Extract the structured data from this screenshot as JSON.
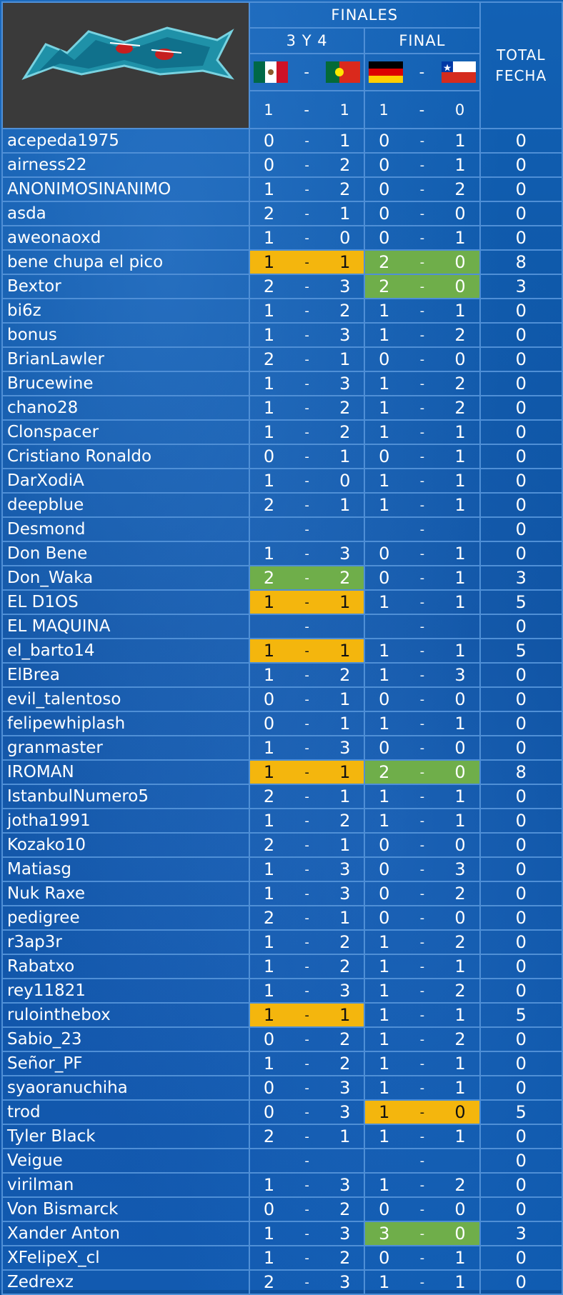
{
  "header": {
    "title": "FINALES",
    "match1": "3 Y 4",
    "match2": "FINAL",
    "total": "TOTAL FECHA",
    "dash": "-",
    "flags": [
      "mexico-flag-icon",
      "portugal-flag-icon",
      "germany-flag-icon",
      "chile-flag-icon"
    ],
    "results": {
      "m1a": "1",
      "m1b": "1",
      "m2a": "1",
      "m2b": "0"
    }
  },
  "colors": {
    "yellow": "#f4b60d",
    "green": "#6fae4a",
    "border": "#4f8fd6"
  },
  "rows": [
    {
      "name": "acepeda1975",
      "m1": [
        "0",
        "1"
      ],
      "m2": [
        "0",
        "1"
      ],
      "total": "0",
      "h1": "",
      "h2": ""
    },
    {
      "name": "airness22",
      "m1": [
        "0",
        "2"
      ],
      "m2": [
        "0",
        "1"
      ],
      "total": "0",
      "h1": "",
      "h2": ""
    },
    {
      "name": "ANONIMOSINANIMO",
      "m1": [
        "1",
        "2"
      ],
      "m2": [
        "0",
        "2"
      ],
      "total": "0",
      "h1": "",
      "h2": ""
    },
    {
      "name": "asda",
      "m1": [
        "2",
        "1"
      ],
      "m2": [
        "0",
        "0"
      ],
      "total": "0",
      "h1": "",
      "h2": ""
    },
    {
      "name": "aweonaoxd",
      "m1": [
        "1",
        "0"
      ],
      "m2": [
        "0",
        "1"
      ],
      "total": "0",
      "h1": "",
      "h2": ""
    },
    {
      "name": "bene chupa el pico",
      "m1": [
        "1",
        "1"
      ],
      "m2": [
        "2",
        "0"
      ],
      "total": "8",
      "h1": "yellow",
      "h2": "green"
    },
    {
      "name": "Bextor",
      "m1": [
        "2",
        "3"
      ],
      "m2": [
        "2",
        "0"
      ],
      "total": "3",
      "h1": "",
      "h2": "green"
    },
    {
      "name": "bi6z",
      "m1": [
        "1",
        "2"
      ],
      "m2": [
        "1",
        "1"
      ],
      "total": "0",
      "h1": "",
      "h2": ""
    },
    {
      "name": "bonus",
      "m1": [
        "1",
        "3"
      ],
      "m2": [
        "1",
        "2"
      ],
      "total": "0",
      "h1": "",
      "h2": ""
    },
    {
      "name": "BrianLawler",
      "m1": [
        "2",
        "1"
      ],
      "m2": [
        "0",
        "0"
      ],
      "total": "0",
      "h1": "",
      "h2": ""
    },
    {
      "name": "Brucewine",
      "m1": [
        "1",
        "3"
      ],
      "m2": [
        "1",
        "2"
      ],
      "total": "0",
      "h1": "",
      "h2": ""
    },
    {
      "name": "chano28",
      "m1": [
        "1",
        "2"
      ],
      "m2": [
        "1",
        "2"
      ],
      "total": "0",
      "h1": "",
      "h2": ""
    },
    {
      "name": "Clonspacer",
      "m1": [
        "1",
        "2"
      ],
      "m2": [
        "1",
        "1"
      ],
      "total": "0",
      "h1": "",
      "h2": ""
    },
    {
      "name": "Cristiano Ronaldo",
      "m1": [
        "0",
        "1"
      ],
      "m2": [
        "0",
        "1"
      ],
      "total": "0",
      "h1": "",
      "h2": ""
    },
    {
      "name": "DarXodiA",
      "m1": [
        "1",
        "0"
      ],
      "m2": [
        "1",
        "1"
      ],
      "total": "0",
      "h1": "",
      "h2": ""
    },
    {
      "name": "deepblue",
      "m1": [
        "2",
        "1"
      ],
      "m2": [
        "1",
        "1"
      ],
      "total": "0",
      "h1": "",
      "h2": ""
    },
    {
      "name": "Desmond",
      "m1": [
        "",
        ""
      ],
      "m2": [
        "",
        ""
      ],
      "total": "0",
      "h1": "",
      "h2": ""
    },
    {
      "name": "Don Bene",
      "m1": [
        "1",
        "3"
      ],
      "m2": [
        "0",
        "1"
      ],
      "total": "0",
      "h1": "",
      "h2": ""
    },
    {
      "name": "Don_Waka",
      "m1": [
        "2",
        "2"
      ],
      "m2": [
        "0",
        "1"
      ],
      "total": "3",
      "h1": "green",
      "h2": ""
    },
    {
      "name": "EL D1OS",
      "m1": [
        "1",
        "1"
      ],
      "m2": [
        "1",
        "1"
      ],
      "total": "5",
      "h1": "yellow",
      "h2": ""
    },
    {
      "name": "EL MAQUINA",
      "m1": [
        "",
        ""
      ],
      "m2": [
        "",
        ""
      ],
      "total": "0",
      "h1": "",
      "h2": ""
    },
    {
      "name": "el_barto14",
      "m1": [
        "1",
        "1"
      ],
      "m2": [
        "1",
        "1"
      ],
      "total": "5",
      "h1": "yellow",
      "h2": ""
    },
    {
      "name": "ElBrea",
      "m1": [
        "1",
        "2"
      ],
      "m2": [
        "1",
        "3"
      ],
      "total": "0",
      "h1": "",
      "h2": ""
    },
    {
      "name": "evil_talentoso",
      "m1": [
        "0",
        "1"
      ],
      "m2": [
        "0",
        "0"
      ],
      "total": "0",
      "h1": "",
      "h2": ""
    },
    {
      "name": "felipewhiplash",
      "m1": [
        "0",
        "1"
      ],
      "m2": [
        "1",
        "1"
      ],
      "total": "0",
      "h1": "",
      "h2": ""
    },
    {
      "name": "granmaster",
      "m1": [
        "1",
        "3"
      ],
      "m2": [
        "0",
        "0"
      ],
      "total": "0",
      "h1": "",
      "h2": ""
    },
    {
      "name": "IROMAN",
      "m1": [
        "1",
        "1"
      ],
      "m2": [
        "2",
        "0"
      ],
      "total": "8",
      "h1": "yellow",
      "h2": "green"
    },
    {
      "name": "IstanbulNumero5",
      "m1": [
        "2",
        "1"
      ],
      "m2": [
        "1",
        "1"
      ],
      "total": "0",
      "h1": "",
      "h2": ""
    },
    {
      "name": "jotha1991",
      "m1": [
        "1",
        "2"
      ],
      "m2": [
        "1",
        "1"
      ],
      "total": "0",
      "h1": "",
      "h2": ""
    },
    {
      "name": "Kozako10",
      "m1": [
        "2",
        "1"
      ],
      "m2": [
        "0",
        "0"
      ],
      "total": "0",
      "h1": "",
      "h2": ""
    },
    {
      "name": "Matiasg",
      "m1": [
        "1",
        "3"
      ],
      "m2": [
        "0",
        "3"
      ],
      "total": "0",
      "h1": "",
      "h2": ""
    },
    {
      "name": "Nuk Raxe",
      "m1": [
        "1",
        "3"
      ],
      "m2": [
        "0",
        "2"
      ],
      "total": "0",
      "h1": "",
      "h2": ""
    },
    {
      "name": "pedigree",
      "m1": [
        "2",
        "1"
      ],
      "m2": [
        "0",
        "0"
      ],
      "total": "0",
      "h1": "",
      "h2": ""
    },
    {
      "name": "r3ap3r",
      "m1": [
        "1",
        "2"
      ],
      "m2": [
        "1",
        "2"
      ],
      "total": "0",
      "h1": "",
      "h2": ""
    },
    {
      "name": "Rabatxo",
      "m1": [
        "1",
        "2"
      ],
      "m2": [
        "1",
        "1"
      ],
      "total": "0",
      "h1": "",
      "h2": ""
    },
    {
      "name": "rey11821",
      "m1": [
        "1",
        "3"
      ],
      "m2": [
        "1",
        "2"
      ],
      "total": "0",
      "h1": "",
      "h2": ""
    },
    {
      "name": "rulointhebox",
      "m1": [
        "1",
        "1"
      ],
      "m2": [
        "1",
        "1"
      ],
      "total": "5",
      "h1": "yellow",
      "h2": ""
    },
    {
      "name": "Sabio_23",
      "m1": [
        "0",
        "2"
      ],
      "m2": [
        "1",
        "2"
      ],
      "total": "0",
      "h1": "",
      "h2": ""
    },
    {
      "name": "Señor_PF",
      "m1": [
        "1",
        "2"
      ],
      "m2": [
        "1",
        "1"
      ],
      "total": "0",
      "h1": "",
      "h2": ""
    },
    {
      "name": "syaoranuchiha",
      "m1": [
        "0",
        "3"
      ],
      "m2": [
        "1",
        "1"
      ],
      "total": "0",
      "h1": "",
      "h2": ""
    },
    {
      "name": "trod",
      "m1": [
        "0",
        "3"
      ],
      "m2": [
        "1",
        "0"
      ],
      "total": "5",
      "h1": "",
      "h2": "yellow"
    },
    {
      "name": "Tyler Black",
      "m1": [
        "2",
        "1"
      ],
      "m2": [
        "1",
        "1"
      ],
      "total": "0",
      "h1": "",
      "h2": ""
    },
    {
      "name": "Veigue",
      "m1": [
        "",
        ""
      ],
      "m2": [
        "",
        ""
      ],
      "total": "0",
      "h1": "",
      "h2": ""
    },
    {
      "name": "virilman",
      "m1": [
        "1",
        "3"
      ],
      "m2": [
        "1",
        "2"
      ],
      "total": "0",
      "h1": "",
      "h2": ""
    },
    {
      "name": "Von Bismarck",
      "m1": [
        "0",
        "2"
      ],
      "m2": [
        "0",
        "0"
      ],
      "total": "0",
      "h1": "",
      "h2": ""
    },
    {
      "name": "Xander Anton",
      "m1": [
        "1",
        "3"
      ],
      "m2": [
        "3",
        "0"
      ],
      "total": "3",
      "h1": "",
      "h2": "green"
    },
    {
      "name": "XFelipeX_cl",
      "m1": [
        "1",
        "2"
      ],
      "m2": [
        "0",
        "1"
      ],
      "total": "0",
      "h1": "",
      "h2": ""
    },
    {
      "name": "Zedrexz",
      "m1": [
        "2",
        "3"
      ],
      "m2": [
        "1",
        "1"
      ],
      "total": "0",
      "h1": "",
      "h2": ""
    }
  ]
}
